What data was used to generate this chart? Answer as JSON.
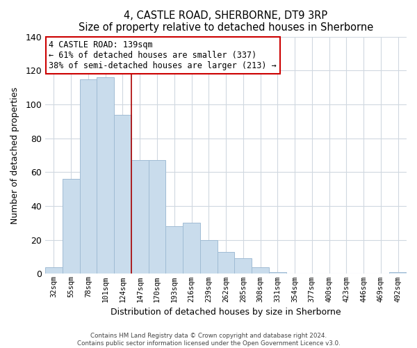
{
  "title": "4, CASTLE ROAD, SHERBORNE, DT9 3RP",
  "subtitle": "Size of property relative to detached houses in Sherborne",
  "xlabel": "Distribution of detached houses by size in Sherborne",
  "ylabel": "Number of detached properties",
  "categories": [
    "32sqm",
    "55sqm",
    "78sqm",
    "101sqm",
    "124sqm",
    "147sqm",
    "170sqm",
    "193sqm",
    "216sqm",
    "239sqm",
    "262sqm",
    "285sqm",
    "308sqm",
    "331sqm",
    "354sqm",
    "377sqm",
    "400sqm",
    "423sqm",
    "446sqm",
    "469sqm",
    "492sqm"
  ],
  "values": [
    4,
    56,
    115,
    116,
    94,
    67,
    67,
    28,
    30,
    20,
    13,
    9,
    4,
    1,
    0,
    0,
    0,
    0,
    0,
    0,
    1
  ],
  "bar_color": "#c9dcec",
  "bar_edge_color": "#a0bcd4",
  "marker_line_index": 5,
  "marker_line_color": "#aa0000",
  "ylim": [
    0,
    140
  ],
  "yticks": [
    0,
    20,
    40,
    60,
    80,
    100,
    120,
    140
  ],
  "annotation_text_line1": "4 CASTLE ROAD: 139sqm",
  "annotation_text_line2": "← 61% of detached houses are smaller (337)",
  "annotation_text_line3": "38% of semi-detached houses are larger (213) →",
  "footer_line1": "Contains HM Land Registry data © Crown copyright and database right 2024.",
  "footer_line2": "Contains public sector information licensed under the Open Government Licence v3.0.",
  "background_color": "#ffffff",
  "plot_bg_color": "#ffffff",
  "grid_color": "#d0d8e0"
}
